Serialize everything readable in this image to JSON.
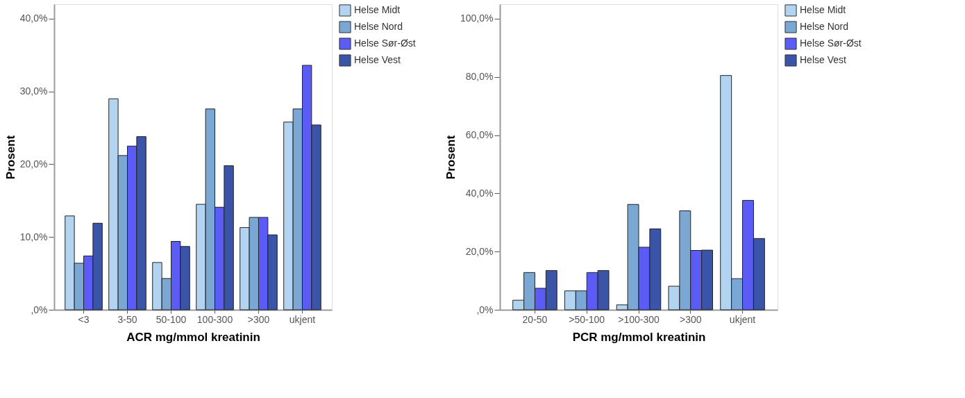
{
  "chart_data": [
    {
      "type": "bar",
      "xlabel": "ACR mg/mmol kreatinin",
      "ylabel": "Prosent",
      "categories": [
        "<3",
        "3-50",
        "50-100",
        "100-300",
        ">300",
        "ukjent"
      ],
      "ylim": [
        0,
        42
      ],
      "yticks": [
        {
          "value": 0,
          "label": ",0%"
        },
        {
          "value": 10,
          "label": "10,0%"
        },
        {
          "value": 20,
          "label": "20,0%"
        },
        {
          "value": 30,
          "label": "30,0%"
        },
        {
          "value": 40,
          "label": "40,0%"
        }
      ],
      "grid": false,
      "legend": "top right",
      "series": [
        {
          "name": "Helse Midt",
          "color": "#b3d4f0",
          "values": [
            12.9,
            29.0,
            6.5,
            14.5,
            11.3,
            25.8
          ]
        },
        {
          "name": "Helse Nord",
          "color": "#7aa7d4",
          "values": [
            6.4,
            21.2,
            4.3,
            27.6,
            12.7,
            27.6
          ]
        },
        {
          "name": "Helse Sør-Øst",
          "color": "#5b5cf5",
          "values": [
            7.4,
            22.5,
            9.4,
            14.1,
            12.7,
            33.6
          ]
        },
        {
          "name": "Helse Vest",
          "color": "#3a55a8",
          "values": [
            11.9,
            23.8,
            8.7,
            19.8,
            10.3,
            25.4
          ]
        }
      ]
    },
    {
      "type": "bar",
      "xlabel": "PCR mg/mmol kreatinin",
      "ylabel": "Prosent",
      "categories": [
        "20-50",
        ">50-100",
        ">100-300",
        ">300",
        "ukjent"
      ],
      "ylim": [
        0,
        105
      ],
      "yticks": [
        {
          "value": 0,
          "label": ",0%"
        },
        {
          "value": 20,
          "label": "20,0%"
        },
        {
          "value": 40,
          "label": "40,0%"
        },
        {
          "value": 60,
          "label": "60,0%"
        },
        {
          "value": 80,
          "label": "80,0%"
        },
        {
          "value": 100,
          "label": "100,0%"
        }
      ],
      "grid": false,
      "legend": "top right",
      "series": [
        {
          "name": "Helse Midt",
          "color": "#b3d4f0",
          "values": [
            3.3,
            6.5,
            1.7,
            8.1,
            80.5
          ]
        },
        {
          "name": "Helse Nord",
          "color": "#7aa7d4",
          "values": [
            12.8,
            6.5,
            36.2,
            34.0,
            10.7
          ]
        },
        {
          "name": "Helse Sør-Øst",
          "color": "#5b5cf5",
          "values": [
            7.4,
            12.8,
            21.5,
            20.4,
            37.6
          ]
        },
        {
          "name": "Helse Vest",
          "color": "#3a55a8",
          "values": [
            13.5,
            13.5,
            27.8,
            20.5,
            24.5
          ]
        }
      ]
    }
  ]
}
